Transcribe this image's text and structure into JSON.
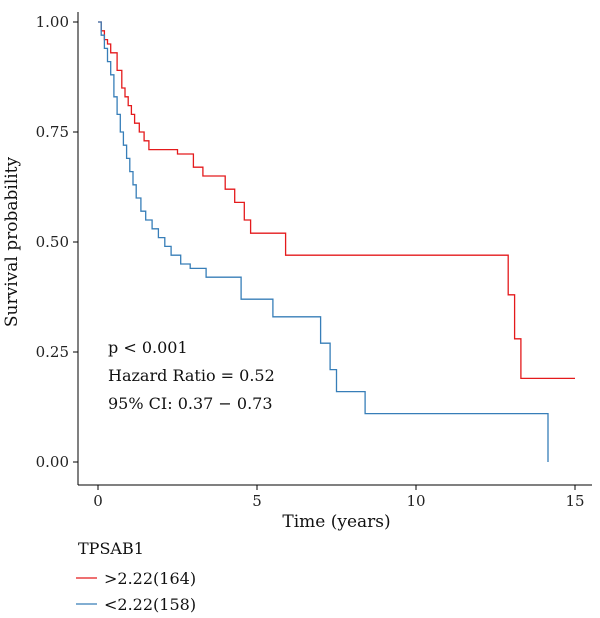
{
  "chart_data": {
    "type": "line",
    "step": true,
    "xlabel": "Time (years)",
    "ylabel": "Survival probability",
    "xlim": [
      0,
      15
    ],
    "ylim": [
      0,
      1
    ],
    "xticks": [
      0,
      5,
      10,
      15
    ],
    "yticks": [
      0.0,
      0.25,
      0.5,
      0.75,
      1.0
    ],
    "ytick_labels": [
      "0.00",
      "0.25",
      "0.50",
      "0.75",
      "1.00"
    ],
    "grid": false,
    "legend_position": "bottom-left",
    "annotations": [
      "p < 0.001",
      "Hazard Ratio = 0.52",
      "95% CI: 0.37 − 0.73"
    ],
    "legend": {
      "title": "TPSAB1",
      "entries": [
        ">2.22(164)",
        "<2.22(158)"
      ]
    },
    "series": [
      {
        "name": ">2.22(164)",
        "color": "#e41a1c",
        "x": [
          0,
          0.1,
          0.2,
          0.3,
          0.4,
          0.6,
          0.75,
          0.85,
          0.95,
          1.05,
          1.15,
          1.3,
          1.45,
          1.6,
          1.75,
          1.9,
          2.5,
          3.0,
          3.3,
          4.0,
          4.3,
          4.6,
          4.8,
          5.9,
          12.9,
          13.1,
          13.3,
          15.0
        ],
        "y": [
          1.0,
          0.98,
          0.96,
          0.95,
          0.93,
          0.89,
          0.85,
          0.83,
          0.81,
          0.79,
          0.77,
          0.75,
          0.73,
          0.71,
          0.71,
          0.71,
          0.7,
          0.67,
          0.65,
          0.62,
          0.59,
          0.55,
          0.52,
          0.47,
          0.38,
          0.28,
          0.19,
          0.19
        ]
      },
      {
        "name": "<2.22(158)",
        "color": "#377eb8",
        "x": [
          0,
          0.1,
          0.2,
          0.3,
          0.4,
          0.5,
          0.6,
          0.7,
          0.8,
          0.9,
          1.0,
          1.1,
          1.2,
          1.35,
          1.5,
          1.7,
          1.9,
          2.1,
          2.3,
          2.6,
          2.9,
          3.4,
          4.5,
          5.5,
          7.0,
          7.3,
          7.5,
          8.4,
          14.1,
          14.15
        ],
        "y": [
          1.0,
          0.97,
          0.94,
          0.91,
          0.88,
          0.83,
          0.79,
          0.75,
          0.72,
          0.69,
          0.66,
          0.63,
          0.6,
          0.57,
          0.55,
          0.53,
          0.51,
          0.49,
          0.47,
          0.45,
          0.44,
          0.42,
          0.37,
          0.33,
          0.27,
          0.21,
          0.16,
          0.11,
          0.11,
          0.0
        ]
      }
    ]
  }
}
